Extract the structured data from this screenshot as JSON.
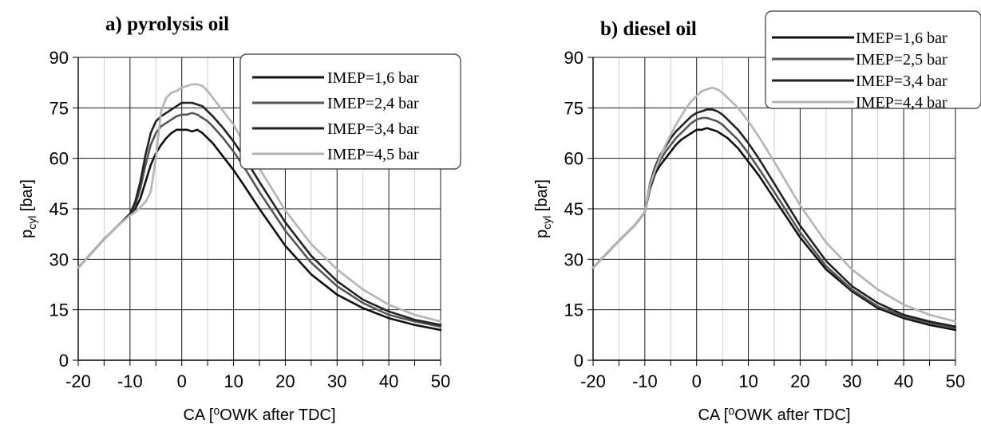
{
  "chart_data": [
    {
      "type": "line",
      "title": "a) pyrolysis oil",
      "xlabel": "CA [⁰OWK after TDC]",
      "ylabel_main": "p",
      "ylabel_sub": "cyl",
      "ylabel_unit": "[bar]",
      "xlim": [
        -20,
        50
      ],
      "ylim": [
        0,
        90
      ],
      "xticks": [
        -20,
        -10,
        0,
        10,
        20,
        30,
        40,
        50
      ],
      "yticks": [
        0,
        15,
        30,
        45,
        60,
        75,
        90
      ],
      "grid": true,
      "legend_position": "top-right",
      "series": [
        {
          "name": "IMEP=1,6 bar",
          "color": "#111111",
          "x": [
            -20,
            -15,
            -12,
            -10,
            -9,
            -8,
            -7,
            -6,
            -5,
            -4,
            -3,
            -2,
            -1,
            0,
            1,
            2,
            3,
            4,
            5,
            6,
            8,
            10,
            12,
            15,
            20,
            25,
            30,
            35,
            40,
            45,
            50
          ],
          "y": [
            27.5,
            36,
            40.5,
            43.5,
            45,
            48,
            53,
            58,
            61.5,
            64,
            66,
            67.5,
            68.5,
            68.5,
            68.5,
            68,
            68.5,
            67.5,
            66,
            64.5,
            60.5,
            56.5,
            52,
            45,
            34,
            25.5,
            19.5,
            15.5,
            12.5,
            10.5,
            9
          ]
        },
        {
          "name": "IMEP=2,4 bar",
          "color": "#555555",
          "x": [
            -20,
            -15,
            -12,
            -10,
            -9,
            -8,
            -7,
            -6,
            -5,
            -4,
            -3,
            -2,
            -1,
            0,
            1,
            2,
            3,
            4,
            5,
            6,
            8,
            10,
            12,
            15,
            20,
            25,
            30,
            35,
            40,
            45,
            50
          ],
          "y": [
            27.5,
            36,
            40.5,
            43.5,
            46,
            51,
            58,
            64,
            67.5,
            69.5,
            70.5,
            71.5,
            72.5,
            73,
            73,
            73.5,
            73,
            72,
            71,
            69.5,
            66,
            62,
            57.5,
            50,
            38.5,
            29,
            22,
            17,
            13.5,
            11.5,
            10
          ]
        },
        {
          "name": "IMEP=3,4 bar",
          "color": "#222222",
          "x": [
            -20,
            -15,
            -12,
            -10,
            -9,
            -8,
            -7,
            -6,
            -5,
            -4,
            -3,
            -2,
            -1,
            0,
            1,
            2,
            3,
            4,
            5,
            6,
            8,
            10,
            12,
            15,
            20,
            25,
            30,
            35,
            40,
            45,
            50
          ],
          "y": [
            27.5,
            36,
            40.5,
            43.5,
            47,
            53,
            61,
            67.5,
            71,
            72.5,
            73.5,
            74.5,
            75.5,
            76.5,
            76.5,
            76.5,
            76,
            75.5,
            74,
            72.5,
            69,
            65,
            60.5,
            53,
            41,
            31,
            23.5,
            18,
            14.5,
            12,
            10.5
          ]
        },
        {
          "name": "IMEP=4,5 bar",
          "color": "#b4b4b4",
          "x": [
            -20,
            -15,
            -12,
            -10,
            -9,
            -8,
            -7,
            -6,
            -5,
            -4,
            -3,
            -2,
            -1,
            0,
            1,
            2,
            3,
            4,
            5,
            6,
            8,
            10,
            12,
            15,
            20,
            25,
            30,
            35,
            40,
            45,
            50
          ],
          "y": [
            27.5,
            36,
            40.5,
            43,
            44,
            45.5,
            47,
            50,
            60,
            74,
            78,
            79.5,
            80,
            81,
            81.5,
            82,
            82,
            81.5,
            80,
            78,
            74,
            70,
            64.5,
            57,
            44.5,
            34.5,
            27,
            21,
            16.5,
            13.5,
            11.5
          ]
        }
      ]
    },
    {
      "type": "line",
      "title": "b) diesel oil",
      "xlabel": "CA [⁰OWK after TDC]",
      "ylabel_main": "p",
      "ylabel_sub": "cyl",
      "ylabel_unit": "[bar]",
      "xlim": [
        -20,
        50
      ],
      "ylim": [
        0,
        90
      ],
      "xticks": [
        -20,
        -10,
        0,
        10,
        20,
        30,
        40,
        50
      ],
      "yticks": [
        0,
        15,
        30,
        45,
        60,
        75,
        90
      ],
      "grid": true,
      "legend_position": "top-right",
      "series": [
        {
          "name": "IMEP=1,6 bar",
          "color": "#111111",
          "x": [
            -20,
            -15,
            -12,
            -10,
            -9,
            -8,
            -7,
            -6,
            -5,
            -4,
            -3,
            -2,
            -1,
            0,
            1,
            2,
            3,
            4,
            5,
            6,
            8,
            10,
            12,
            15,
            20,
            25,
            30,
            35,
            40,
            45,
            50
          ],
          "y": [
            27.5,
            35.5,
            40,
            44,
            51,
            55.5,
            58,
            60,
            62,
            64,
            65.5,
            66.5,
            67.5,
            68.5,
            68.5,
            69,
            68.5,
            68,
            67,
            66,
            63,
            59,
            55,
            48,
            36.5,
            27,
            20.5,
            15.5,
            12.5,
            10.5,
            9
          ]
        },
        {
          "name": "IMEP=2,5 bar",
          "color": "#555555",
          "x": [
            -20,
            -15,
            -12,
            -10,
            -9,
            -8,
            -7,
            -6,
            -5,
            -4,
            -3,
            -2,
            -1,
            0,
            1,
            2,
            3,
            4,
            5,
            6,
            8,
            10,
            12,
            15,
            20,
            25,
            30,
            35,
            40,
            45,
            50
          ],
          "y": [
            27.5,
            35.5,
            40,
            44,
            52,
            56.5,
            59.5,
            62,
            64,
            66,
            67.5,
            69,
            70.5,
            71.5,
            72,
            72,
            71.5,
            71,
            70,
            68.5,
            65.5,
            61.5,
            57,
            50,
            38,
            28,
            21,
            16,
            13,
            11,
            9.5
          ]
        },
        {
          "name": "IMEP=3,4 bar",
          "color": "#222222",
          "x": [
            -20,
            -15,
            -12,
            -10,
            -9,
            -8,
            -7,
            -6,
            -5,
            -4,
            -3,
            -2,
            -1,
            0,
            1,
            2,
            3,
            4,
            5,
            6,
            8,
            10,
            12,
            15,
            20,
            25,
            30,
            35,
            40,
            45,
            50
          ],
          "y": [
            27.5,
            35.5,
            40,
            44,
            52.5,
            57.5,
            61,
            63.5,
            66,
            68,
            69.5,
            71,
            72.5,
            73.5,
            74,
            74.5,
            74.5,
            74,
            73,
            71.5,
            68.5,
            64.5,
            60,
            52.5,
            40,
            29.5,
            22,
            17,
            13.5,
            11.5,
            10
          ]
        },
        {
          "name": "IMEP=4,4 bar",
          "color": "#b4b4b4",
          "x": [
            -20,
            -15,
            -12,
            -10,
            -9,
            -8,
            -7,
            -6,
            -5,
            -4,
            -3,
            -2,
            -1,
            0,
            1,
            2,
            3,
            4,
            5,
            6,
            8,
            10,
            12,
            15,
            20,
            25,
            30,
            35,
            40,
            45,
            50
          ],
          "y": [
            27.5,
            35.5,
            40,
            44,
            52,
            56.5,
            60.5,
            64,
            67,
            70,
            72.5,
            75,
            77,
            78.5,
            80,
            80.5,
            81,
            80.5,
            79.5,
            78,
            75,
            71,
            66.5,
            59,
            46,
            35,
            27,
            21,
            16.5,
            13.5,
            11.5
          ]
        }
      ]
    }
  ]
}
